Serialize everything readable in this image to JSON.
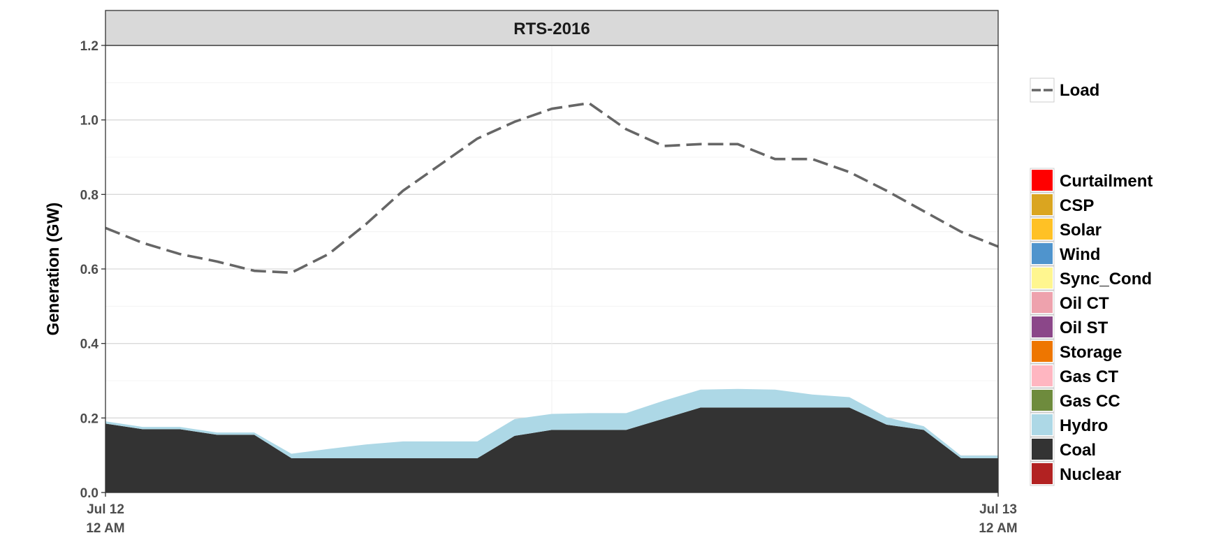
{
  "chart_data": {
    "type": "area",
    "panel_title": "RTS-2016",
    "ylabel": "Generation (GW)",
    "ylim": [
      0,
      1.2
    ],
    "yticks": [
      0.0,
      0.2,
      0.4,
      0.6,
      0.8,
      1.0,
      1.2
    ],
    "ytick_labels": [
      "0.0",
      "0.2",
      "0.4",
      "0.6",
      "0.8",
      "1.0",
      "1.2"
    ],
    "xticks": [
      {
        "hour": 0,
        "line1": "Jul 12",
        "line2": "12 AM"
      },
      {
        "hour": 24,
        "line1": "Jul 13",
        "line2": "12 AM"
      }
    ],
    "hours": [
      0,
      1,
      2,
      3,
      4,
      5,
      6,
      7,
      8,
      9,
      10,
      11,
      12,
      13,
      14,
      15,
      16,
      17,
      18,
      19,
      20,
      21,
      22,
      23,
      24
    ],
    "stack": [
      {
        "name": "Nuclear",
        "color": "#b22222",
        "values": [
          0,
          0,
          0,
          0,
          0,
          0,
          0,
          0,
          0,
          0,
          0,
          0,
          0,
          0,
          0,
          0,
          0,
          0,
          0,
          0,
          0,
          0,
          0,
          0,
          0
        ]
      },
      {
        "name": "Coal",
        "color": "#333333",
        "values": [
          0.185,
          0.17,
          0.17,
          0.155,
          0.155,
          0.092,
          0.092,
          0.092,
          0.092,
          0.092,
          0.092,
          0.152,
          0.168,
          0.168,
          0.168,
          0.198,
          0.228,
          0.228,
          0.228,
          0.228,
          0.228,
          0.182,
          0.168,
          0.092,
          0.092
        ]
      },
      {
        "name": "Hydro",
        "color": "#add8e6",
        "values": [
          0.006,
          0.006,
          0.006,
          0.006,
          0.006,
          0.012,
          0.025,
          0.037,
          0.045,
          0.045,
          0.045,
          0.045,
          0.043,
          0.045,
          0.045,
          0.048,
          0.048,
          0.05,
          0.048,
          0.035,
          0.028,
          0.02,
          0.01,
          0.007,
          0.007
        ]
      },
      {
        "name": "Gas CC",
        "color": "#6e8b3d",
        "values": [
          0,
          0,
          0,
          0,
          0,
          0,
          0,
          0,
          0,
          0,
          0,
          0,
          0,
          0,
          0,
          0,
          0,
          0,
          0,
          0,
          0,
          0,
          0,
          0,
          0
        ]
      },
      {
        "name": "Gas CT",
        "color": "#ffb6c1",
        "values": [
          0,
          0,
          0,
          0,
          0,
          0,
          0,
          0,
          0,
          0,
          0,
          0,
          0,
          0,
          0,
          0,
          0,
          0,
          0,
          0,
          0,
          0,
          0,
          0,
          0
        ]
      },
      {
        "name": "Storage",
        "color": "#ee7600",
        "values": [
          0,
          0,
          0,
          0,
          0,
          0,
          0,
          0,
          0,
          0,
          0,
          0,
          0,
          0,
          0,
          0,
          0,
          0,
          0,
          0,
          0,
          0,
          0,
          0,
          0
        ]
      },
      {
        "name": "Oil ST",
        "color": "#8b4789",
        "values": [
          0,
          0,
          0,
          0,
          0,
          0,
          0,
          0,
          0,
          0,
          0,
          0,
          0,
          0,
          0,
          0,
          0,
          0,
          0,
          0,
          0,
          0,
          0,
          0,
          0
        ]
      },
      {
        "name": "Oil CT",
        "color": "#eea2ad",
        "values": [
          0,
          0,
          0,
          0,
          0,
          0,
          0,
          0,
          0,
          0,
          0,
          0,
          0,
          0,
          0,
          0,
          0,
          0,
          0,
          0,
          0,
          0,
          0,
          0,
          0
        ]
      },
      {
        "name": "Sync_Cond",
        "color": "#fff68f",
        "values": [
          0,
          0,
          0,
          0,
          0,
          0,
          0,
          0,
          0,
          0,
          0,
          0,
          0,
          0,
          0,
          0,
          0,
          0,
          0,
          0,
          0,
          0,
          0,
          0,
          0
        ]
      },
      {
        "name": "Wind",
        "color": "#4f94cd",
        "values": [
          0,
          0,
          0,
          0,
          0,
          0,
          0,
          0,
          0,
          0,
          0,
          0,
          0,
          0,
          0,
          0,
          0,
          0,
          0,
          0,
          0,
          0,
          0,
          0,
          0
        ]
      },
      {
        "name": "Solar",
        "color": "#ffc125",
        "values": [
          0,
          0,
          0,
          0,
          0,
          0,
          0,
          0,
          0,
          0,
          0,
          0,
          0,
          0,
          0,
          0,
          0,
          0,
          0,
          0,
          0,
          0,
          0,
          0,
          0
        ]
      },
      {
        "name": "CSP",
        "color": "#daa520",
        "values": [
          0,
          0,
          0,
          0,
          0,
          0,
          0,
          0,
          0,
          0,
          0,
          0,
          0,
          0,
          0,
          0,
          0,
          0,
          0,
          0,
          0,
          0,
          0,
          0,
          0
        ]
      },
      {
        "name": "Curtailment",
        "color": "#ff0000",
        "values": [
          0,
          0,
          0,
          0,
          0,
          0,
          0,
          0,
          0,
          0,
          0,
          0,
          0,
          0,
          0,
          0,
          0,
          0,
          0,
          0,
          0,
          0,
          0,
          0,
          0
        ]
      }
    ],
    "load": {
      "name": "Load",
      "color": "#666666",
      "values": [
        0.71,
        0.67,
        0.64,
        0.62,
        0.595,
        0.59,
        0.64,
        0.72,
        0.81,
        0.88,
        0.95,
        0.995,
        1.03,
        1.045,
        0.975,
        0.93,
        0.935,
        0.935,
        0.895,
        0.895,
        0.86,
        0.81,
        0.755,
        0.7,
        0.66
      ]
    },
    "legend_position": "right",
    "legend_order": [
      "Curtailment",
      "CSP",
      "Solar",
      "Wind",
      "Sync_Cond",
      "Oil CT",
      "Oil ST",
      "Storage",
      "Gas CT",
      "Gas CC",
      "Hydro",
      "Coal",
      "Nuclear"
    ],
    "grid": true
  }
}
